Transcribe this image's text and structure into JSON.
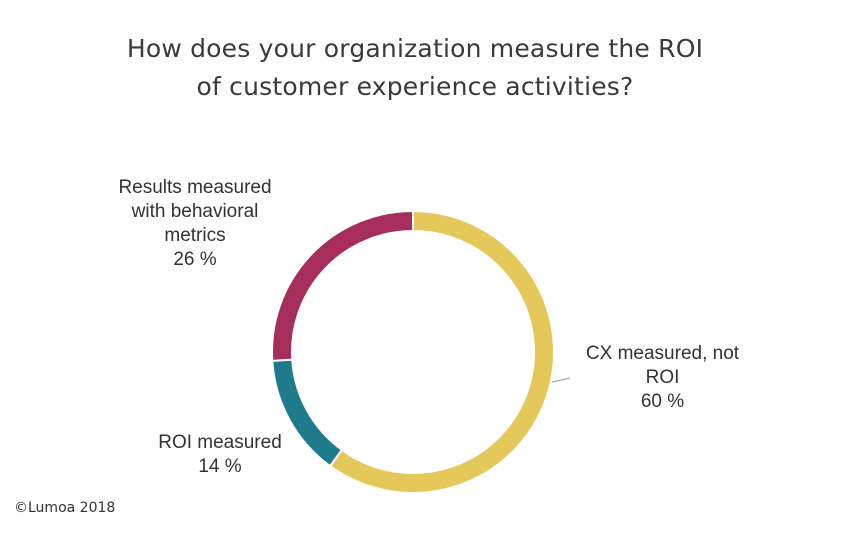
{
  "chart_data": {
    "type": "pie",
    "title_lines": [
      "How does your organization measure the ROI",
      "of customer experience activities?"
    ],
    "slices": [
      {
        "label_lines": [
          "CX measured, not",
          "ROI"
        ],
        "value": 60,
        "value_text": "60 %",
        "color": "#e5c85a"
      },
      {
        "label_lines": [
          "ROI measured"
        ],
        "value": 14,
        "value_text": "14 %",
        "color": "#1f7a8c"
      },
      {
        "label_lines": [
          "Results measured",
          "with behavioral",
          "metrics"
        ],
        "value": 26,
        "value_text": "26 %",
        "color": "#a62d5c"
      }
    ],
    "donut": true
  },
  "footer": {
    "copyright": "©Lumoa 2018"
  }
}
